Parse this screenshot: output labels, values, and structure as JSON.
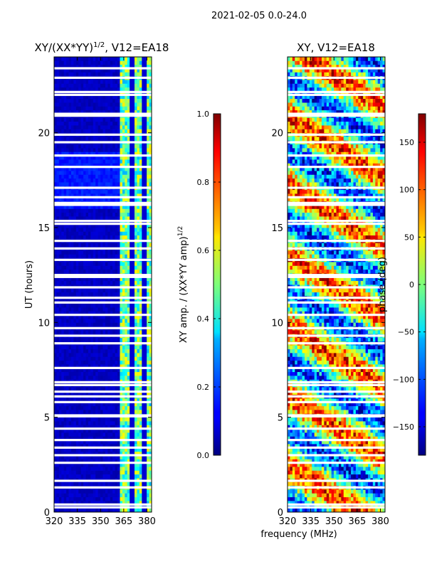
{
  "chart_data": {
    "suptitle": "2021-02-05 0.0-24.0",
    "shared_xlabel": "frequency (MHz)",
    "panels": [
      {
        "type": "heatmap",
        "title_main": "XY/(XX*YY)",
        "title_exp": "1/2",
        "title_suffix": ", V12=EA18",
        "ylabel": "UT (hours)",
        "xlim": [
          320,
          383
        ],
        "ylim": [
          0,
          24
        ],
        "xticks": [
          320,
          335,
          350,
          365,
          380
        ],
        "yticks": [
          0,
          5,
          10,
          15,
          20
        ],
        "colorbar": {
          "label_main": "XY amp. / (XX*YY amp)",
          "label_exp": "1/2",
          "range": [
            0.0,
            1.0
          ],
          "ticks": [
            "0.0",
            "0.2",
            "0.4",
            "0.6",
            "0.8",
            "1.0"
          ],
          "tick_values": [
            0.0,
            0.2,
            0.4,
            0.6,
            0.8,
            1.0
          ]
        },
        "description": "normalized cross-hand amplitude; low (~0.05) below 362 MHz, high (0.3-0.7) in 362-383 MHz band"
      },
      {
        "type": "heatmap",
        "title": "XY, V12=EA18",
        "xlim": [
          320,
          383
        ],
        "ylim": [
          0,
          24
        ],
        "xticks": [
          320,
          335,
          350,
          365,
          380
        ],
        "yticks": [
          0,
          5,
          10,
          15,
          20
        ],
        "colorbar": {
          "label": "phase (deg)",
          "range": [
            -180,
            180
          ],
          "ticks": [
            "-150",
            "-100",
            "-50",
            "0",
            "50",
            "100",
            "150"
          ],
          "tick_values": [
            -150,
            -100,
            -50,
            0,
            50,
            100,
            150
          ]
        },
        "description": "cross-hand phase in degrees, full range -180 to 180"
      }
    ],
    "flagged_gap_hours": [
      0.25,
      0.4,
      1.3,
      1.65,
      2.6,
      3.0,
      3.4,
      3.8,
      4.4,
      5.05,
      5.1,
      5.8,
      6.1,
      6.35,
      6.7,
      6.85,
      7.6,
      8.9,
      9.3,
      9.7,
      10.4,
      11.05,
      11.3,
      11.85,
      12.4,
      12.5,
      13.3,
      13.9,
      14.3,
      15.2,
      15.35,
      16.2,
      16.3,
      16.6,
      17.1,
      18.2,
      18.8,
      19.5,
      19.9,
      20.9,
      21.0,
      22.0,
      22.15,
      22.9,
      23.4
    ]
  }
}
